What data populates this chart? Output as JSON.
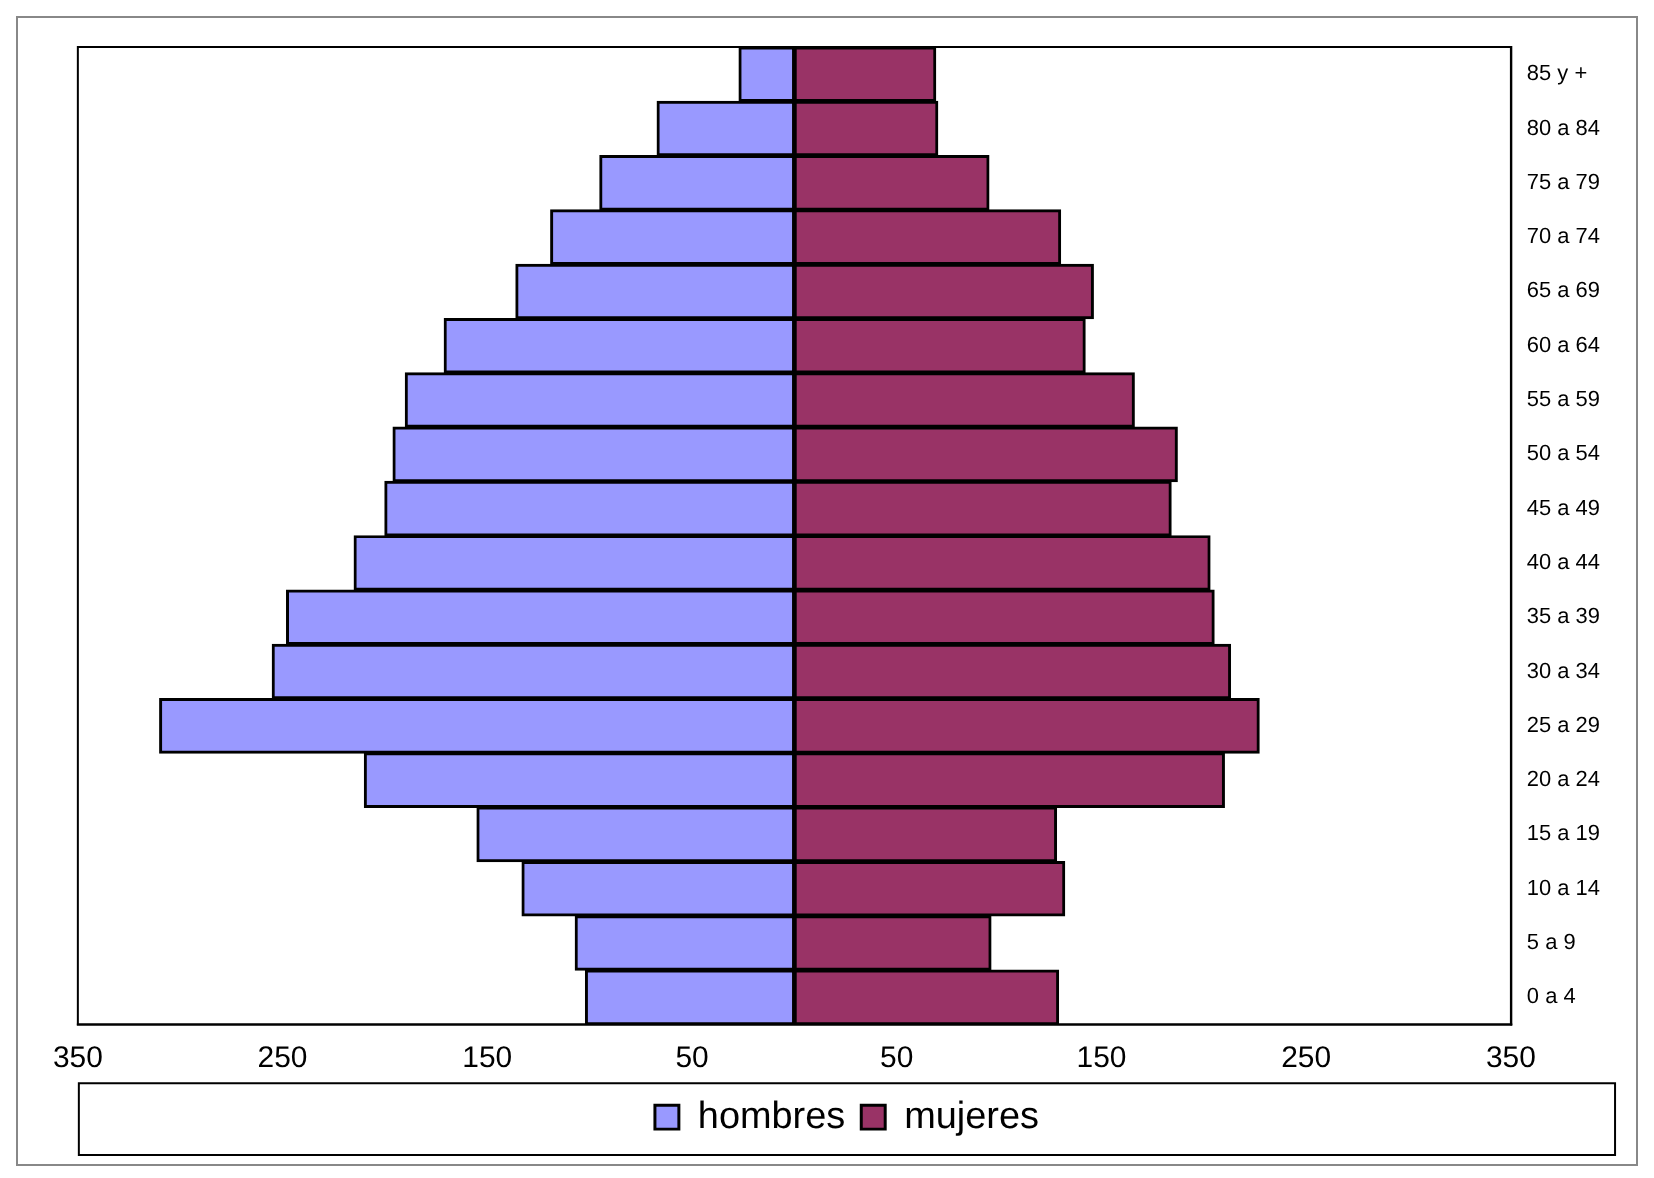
{
  "chart_data": {
    "type": "bar",
    "orientation": "horizontal",
    "stacked": true,
    "categories": [
      "85 y +",
      "80 a 84",
      "75 a 79",
      "70 a 74",
      "65 a 69",
      "60 a 64",
      "55 a 59",
      "50 a 54",
      "45 a 49",
      "40 a 44",
      "35 a 39",
      "30 a 34",
      "25 a 29",
      "20 a 24",
      "15 a 19",
      "10 a 14",
      "5 a 9",
      "0 a 4"
    ],
    "series": [
      {
        "name": "hombres",
        "color": "#9999ff",
        "values": [
          -27,
          -67,
          -95,
          -119,
          -136,
          -171,
          -190,
          -196,
          -200,
          -215,
          -248,
          -255,
          -310,
          -210,
          -155,
          -133,
          -107,
          -102
        ]
      },
      {
        "name": "mujeres",
        "color": "#993366",
        "values": [
          69,
          70,
          95,
          130,
          146,
          142,
          166,
          187,
          184,
          203,
          205,
          213,
          227,
          210,
          128,
          132,
          96,
          129
        ]
      }
    ],
    "xlim": [
      -350,
      350
    ],
    "xticks": [
      {
        "value": -350,
        "label": "350"
      },
      {
        "value": -250,
        "label": "250"
      },
      {
        "value": -150,
        "label": "150"
      },
      {
        "value": -50,
        "label": "50"
      },
      50,
      150,
      250,
      350
    ],
    "grid": false,
    "legend": "bottom"
  }
}
